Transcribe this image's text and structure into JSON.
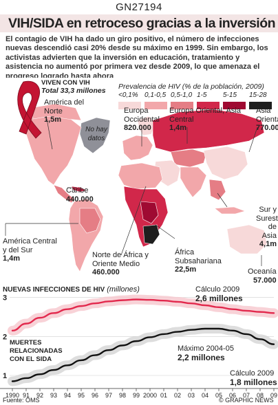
{
  "code": "GN27194",
  "headline": "VIH/SIDA en retroceso gracias a la inversión",
  "intro": "El contagio de VIH ha dado un giro positivo, el número de infecciones nuevas descendió casi 20% desde su máximo en 1999. Sin embargo, los activistas advierten que la inversión en educación, tratamiento y asistencia no aumentó por primera vez desde 2009, lo que amenaza el progreso logrado hasta ahora",
  "map": {
    "hiv_box": {
      "title": "Viven con VIH",
      "total": "Total 33,3 millones"
    },
    "legend": {
      "title": "Prevalencia de HIV (% de la población, 2009)",
      "items": [
        {
          "label": "<0,1%",
          "color": "#f7d9d9"
        },
        {
          "label": "0,1-0,5",
          "color": "#f2a7aa"
        },
        {
          "label": "0,5-1,0",
          "color": "#e57d85"
        },
        {
          "label": "1-5",
          "color": "#d1274a"
        },
        {
          "label": "5-15",
          "color": "#9f0a32"
        },
        {
          "label": "15-28",
          "color": "#1e1e1e"
        }
      ]
    },
    "no_data": "No hay datos",
    "regions": [
      {
        "name": "América del Norte",
        "value": "1,5m"
      },
      {
        "name": "Europa Occidental",
        "value": "820.000"
      },
      {
        "name": "Europa Oriental, Asia Central",
        "value": "1,4m"
      },
      {
        "name": "Asia Oriental",
        "value": "770.000"
      },
      {
        "name": "Caribe",
        "value": "440.000"
      },
      {
        "name": "Sur y Sureste de Asia",
        "value": "4,1m"
      },
      {
        "name": "América Central y del Sur",
        "value": "1,4m"
      },
      {
        "name": "Norte de África y Oriente Medio",
        "value": "460.000"
      },
      {
        "name": "África Subsahariana",
        "value": "22,5m"
      },
      {
        "name": "Oceanía",
        "value": "57.000"
      }
    ]
  },
  "chart_data": {
    "type": "line",
    "x": [
      1990,
      1991,
      1992,
      1993,
      1994,
      1995,
      1996,
      1997,
      1998,
      1999,
      2000,
      2001,
      2002,
      2003,
      2004,
      2005,
      2006,
      2007,
      2008,
      2009
    ],
    "xticks": [
      "1990",
      "91",
      "92",
      "93",
      "94",
      "95",
      "96",
      "97",
      "98",
      "99",
      "2000",
      "01",
      "02",
      "03",
      "04",
      "05",
      "06",
      "07",
      "08",
      "09"
    ],
    "yticks": [
      "1",
      "2",
      "3"
    ],
    "ylim": [
      0.7,
      3.1
    ],
    "units": "(millones)",
    "series": [
      {
        "name": "Nuevas infecciones de HIV",
        "color": "#e2294d",
        "values": [
          2.15,
          2.33,
          2.48,
          2.6,
          2.7,
          2.78,
          2.85,
          2.9,
          2.93,
          2.95,
          2.94,
          2.92,
          2.89,
          2.85,
          2.8,
          2.75,
          2.7,
          2.66,
          2.63,
          2.6
        ]
      },
      {
        "name": "Muertes relacionadas con el SIDA",
        "color": "#111111",
        "values": [
          0.85,
          0.93,
          1.03,
          1.14,
          1.26,
          1.39,
          1.52,
          1.65,
          1.77,
          1.88,
          1.98,
          2.06,
          2.12,
          2.17,
          2.2,
          2.2,
          2.15,
          2.06,
          1.93,
          1.8
        ]
      }
    ],
    "annotations": [
      {
        "label": "Cálculo 2009",
        "value": "2,6 millones"
      },
      {
        "label": "Máximo 2004-05",
        "value": "2,2 millones"
      },
      {
        "label": "Cálculo 2009",
        "value": "1,8 millones"
      }
    ],
    "title_new": "Nuevas infecciones de HIV",
    "title_deaths": "Muertes relacionadas con el SIDA"
  },
  "source": "Fuente: OMS",
  "credit": "© GRAPHIC NEWS",
  "watermark": "© GRAPHIC NEWS"
}
